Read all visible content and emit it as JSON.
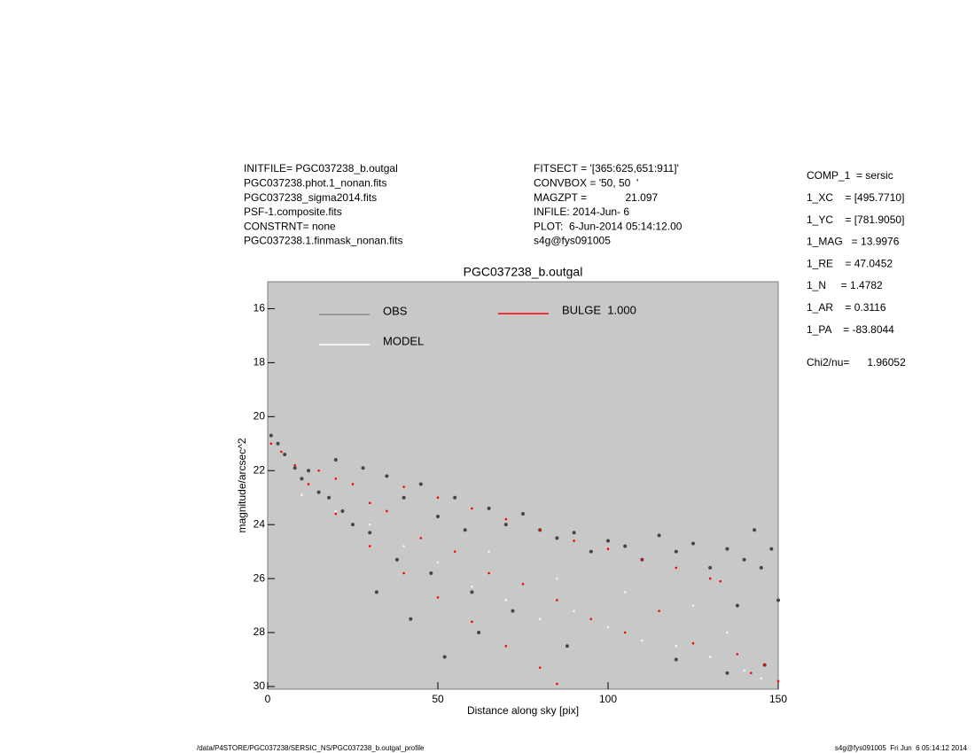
{
  "header": {
    "left": [
      "INITFILE= PGC037238_b.outgal",
      "PGC037238.phot.1_nonan.fits",
      "PGC037238_sigma2014.fits",
      "PSF-1.composite.fits",
      "CONSTRNT= none",
      "PGC037238.1.finmask_nonan.fits"
    ],
    "middle": [
      "FITSECT = '[365:625,651:911]'",
      "CONVBOX = '50, 50  '",
      "MAGZPT =             21.097",
      "INFILE: 2014-Jun- 6",
      "PLOT:  6-Jun-2014 05:14:12.00",
      "s4g@fys091005"
    ],
    "right": [
      "COMP_1  = sersic",
      "1_XC    = [495.7710]",
      "1_YC    = [781.9050]",
      "1_MAG   = 13.9976",
      "1_RE    = 47.0452",
      "1_N     = 1.4782",
      "1_AR    = 0.3116",
      "1_PA    = -83.8044"
    ],
    "fit_summary": "Chi2/nu=      1.96052"
  },
  "footer": {
    "left": "/data/P4STORE/PGC037238/SERSIC_NS/PGC037238_b.outgal_profile",
    "right": "s4g@fys091005  Fri Jun  6 05:14:12 2014"
  },
  "chart_data": {
    "type": "scatter",
    "title": "PGC037238_b.outgal",
    "x_label": "Distance along sky [pix]",
    "y_label": "magnitude/arcsec^2",
    "xlim": [
      0,
      150
    ],
    "xticks": [
      0,
      50,
      100,
      150
    ],
    "ylim": [
      15,
      30.1
    ],
    "yticks": [
      16,
      18,
      20,
      22,
      24,
      26,
      28,
      30
    ],
    "invert_y": true,
    "background": "#c8c8c8",
    "series": [
      {
        "name": "OBS",
        "color": "#464646",
        "legend_color": "#8c8c8c",
        "x": [
          1,
          3,
          5,
          8,
          10,
          12,
          15,
          18,
          20,
          22,
          25,
          28,
          30,
          32,
          35,
          38,
          40,
          42,
          45,
          48,
          50,
          52,
          55,
          58,
          60,
          62,
          65,
          70,
          72,
          75,
          80,
          85,
          88,
          90,
          95,
          100,
          105,
          110,
          115,
          120,
          125,
          130,
          135,
          138,
          140,
          143,
          145,
          148,
          150,
          146,
          135,
          120
        ],
        "y": [
          20.7,
          21.0,
          21.4,
          21.9,
          22.3,
          22.0,
          22.8,
          23.0,
          21.6,
          23.5,
          24.0,
          21.9,
          24.3,
          26.5,
          22.2,
          25.3,
          23.0,
          27.5,
          22.5,
          25.8,
          23.7,
          28.9,
          23.0,
          24.2,
          26.5,
          28.0,
          23.4,
          24.0,
          27.2,
          23.6,
          24.2,
          24.5,
          28.5,
          24.3,
          25.0,
          24.6,
          24.8,
          25.3,
          24.4,
          25.0,
          24.7,
          25.6,
          24.9,
          27.0,
          25.3,
          24.2,
          25.6,
          24.9,
          26.8,
          29.2,
          29.5,
          29.0
        ]
      },
      {
        "name": "MODEL",
        "color": "#f2f2f2",
        "legend_color": "#ffffff",
        "x": [
          10,
          20,
          30,
          40,
          50,
          60,
          70,
          80,
          90,
          100,
          110,
          120,
          130,
          140,
          145,
          65,
          85,
          105,
          125,
          135
        ],
        "y": [
          22.9,
          23.5,
          24.0,
          24.8,
          25.4,
          26.3,
          26.8,
          27.5,
          27.2,
          27.8,
          28.3,
          28.5,
          28.9,
          29.4,
          29.7,
          25.0,
          26.0,
          26.5,
          27.0,
          28.0
        ]
      },
      {
        "name": "BULGE  1.000",
        "color": "#ff0000",
        "legend_color": "#ff0000",
        "x": [
          1,
          4,
          8,
          12,
          15,
          20,
          20,
          25,
          30,
          30,
          35,
          40,
          40,
          45,
          50,
          50,
          55,
          60,
          60,
          65,
          70,
          70,
          75,
          80,
          80,
          85,
          85,
          90,
          95,
          100,
          105,
          110,
          115,
          120,
          125,
          130,
          133,
          138,
          142,
          146,
          150
        ],
        "y": [
          21.0,
          21.3,
          21.8,
          22.5,
          22.0,
          23.6,
          22.3,
          22.5,
          24.8,
          23.2,
          23.5,
          25.8,
          22.6,
          24.5,
          26.7,
          23.0,
          25.0,
          27.6,
          23.4,
          25.8,
          28.5,
          23.8,
          26.2,
          29.3,
          24.2,
          29.9,
          26.8,
          24.6,
          27.5,
          24.9,
          28.0,
          25.3,
          27.2,
          25.6,
          28.4,
          26.0,
          26.1,
          28.8,
          29.5,
          29.2,
          29.8
        ]
      }
    ]
  }
}
